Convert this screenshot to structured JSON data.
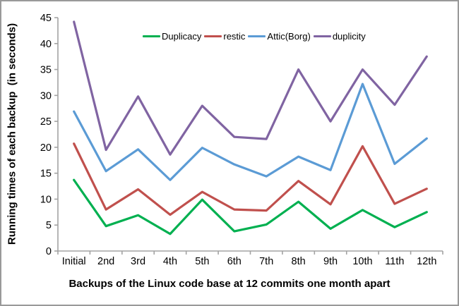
{
  "chart_data": {
    "type": "line",
    "categories": [
      "Initial",
      "2nd",
      "3rd",
      "4th",
      "5th",
      "6th",
      "7th",
      "8th",
      "9th",
      "10th",
      "11th",
      "12th"
    ],
    "series": [
      {
        "name": "Duplicacy",
        "color": "#00B050",
        "values": [
          13.7,
          4.8,
          6.9,
          3.3,
          9.9,
          3.8,
          5.1,
          9.5,
          4.3,
          7.9,
          4.6,
          7.5
        ]
      },
      {
        "name": "restic",
        "color": "#C0504D",
        "values": [
          20.7,
          8.0,
          11.9,
          7.0,
          11.4,
          8.0,
          7.8,
          13.5,
          9.0,
          20.2,
          9.1,
          12.0
        ]
      },
      {
        "name": "Attic(Borg)",
        "color": "#5B9BD5",
        "values": [
          26.9,
          15.4,
          19.6,
          13.7,
          19.9,
          16.7,
          14.4,
          18.2,
          15.6,
          32.2,
          16.8,
          21.7
        ]
      },
      {
        "name": "duplicity",
        "color": "#8064A2",
        "values": [
          44.2,
          19.5,
          29.8,
          18.6,
          28.0,
          22.0,
          21.6,
          35.0,
          25.0,
          35.0,
          28.2,
          37.5
        ]
      }
    ],
    "xlabel": "Backups of the Linux code base at 12 commits one month apart",
    "ylabel": "Running times of each backup  (in seconds)",
    "ylim": [
      0,
      45
    ],
    "ytick_step": 5,
    "legend_position": "top",
    "grid": false,
    "axis_color": "#A3A3A3",
    "text_color": "#000000",
    "border_color": "#999999"
  }
}
